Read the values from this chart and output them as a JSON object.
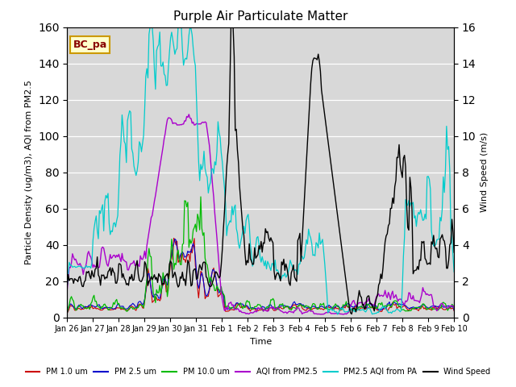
{
  "title": "Purple Air Particulate Matter",
  "ylabel_left": "Particle Density (ug/m3), AQI from PM2.5",
  "ylabel_right": "Wind Speed (m/s)",
  "xlabel": "Time",
  "annotation_text": "BC_pa",
  "ylim_left": [
    0,
    160
  ],
  "ylim_right": [
    0,
    16
  ],
  "bg_color": "#d8d8d8",
  "fig_color": "#ffffff",
  "xtick_labels": [
    "Jan 26",
    "Jan 27",
    "Jan 28",
    "Jan 29",
    "Jan 30",
    "Jan 31",
    "Feb 1",
    "Feb 2",
    "Feb 3",
    "Feb 4",
    "Feb 5",
    "Feb 6",
    "Feb 7",
    "Feb 8",
    "Feb 9",
    "Feb 10"
  ],
  "xtick_positions": [
    0,
    1,
    2,
    3,
    4,
    5,
    6,
    7,
    8,
    9,
    10,
    11,
    12,
    13,
    14,
    15
  ],
  "colors": {
    "pm10": "#cc0000",
    "pm25": "#0000cc",
    "pm10um": "#00bb00",
    "aqi_pm25": "#aa00cc",
    "aqi_pa": "#00cccc",
    "wind": "#000000"
  },
  "legend_labels": [
    "PM 1.0 um",
    "PM 2.5 um",
    "PM 10.0 um",
    "AQI from PM2.5",
    "PM2.5 AQI from PA",
    "Wind Speed"
  ]
}
